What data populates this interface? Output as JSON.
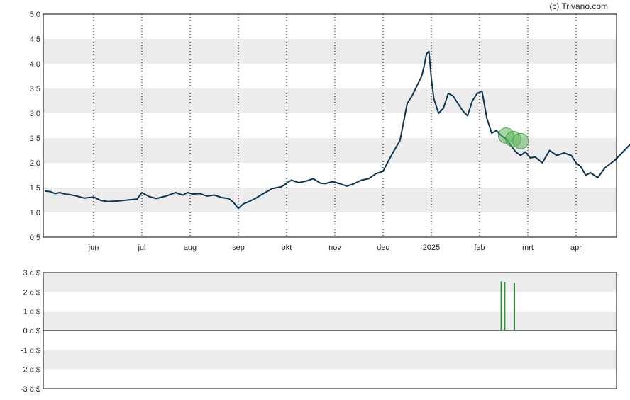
{
  "credit": "(c) Trivano.com",
  "colors": {
    "line": "#0d3552",
    "band": "#ececec",
    "grid": "#000000",
    "volume": "#2e8b3a",
    "marker_fill": "#5cb85c"
  },
  "chart_data": [
    {
      "type": "line",
      "title": "",
      "xlabel": "",
      "ylabel": "",
      "ylim": [
        0.5,
        5.0
      ],
      "y_ticks": [
        "0,5",
        "1,0",
        "1,5",
        "2,0",
        "2,5",
        "3,0",
        "3,5",
        "4,0",
        "4,5",
        "5,0"
      ],
      "x_ticks": [
        {
          "label": "jun",
          "x": 1.0
        },
        {
          "label": "jul",
          "x": 2.0
        },
        {
          "label": "aug",
          "x": 3.0
        },
        {
          "label": "sep",
          "x": 4.0
        },
        {
          "label": "okt",
          "x": 5.0
        },
        {
          "label": "nov",
          "x": 6.0
        },
        {
          "label": "dec",
          "x": 7.0
        },
        {
          "label": "2025",
          "x": 8.0
        },
        {
          "label": "feb",
          "x": 9.0
        },
        {
          "label": "mrt",
          "x": 10.0
        },
        {
          "label": "apr",
          "x": 11.0
        }
      ],
      "grid": true,
      "series": [
        {
          "x": [
            0.0,
            0.1,
            0.2,
            0.3,
            0.4,
            0.5,
            0.65,
            0.8,
            1.0,
            1.15,
            1.3,
            1.5,
            1.7,
            1.9,
            2.0,
            2.15,
            2.3,
            2.5,
            2.7,
            2.85,
            2.95,
            3.05,
            3.2,
            3.35,
            3.5,
            3.65,
            3.8,
            3.9,
            4.0,
            4.1,
            4.2,
            4.35,
            4.5,
            4.7,
            4.9,
            5.0,
            5.1,
            5.25,
            5.4,
            5.55,
            5.7,
            5.8,
            5.95,
            6.1,
            6.25,
            6.4,
            6.55,
            6.7,
            6.85,
            7.0,
            7.1,
            7.2,
            7.35,
            7.5,
            7.6,
            7.7,
            7.8,
            7.85,
            7.9,
            7.95,
            8.0,
            8.05,
            8.1,
            8.15,
            8.25,
            8.35,
            8.45,
            8.55,
            8.65,
            8.75,
            8.85,
            8.95,
            9.05,
            9.15,
            9.25,
            9.35,
            9.45,
            9.55,
            9.65,
            9.75,
            9.85,
            9.95,
            10.05,
            10.15,
            10.3,
            10.45,
            10.6,
            10.75,
            10.9,
            11.0,
            11.1,
            11.2,
            11.3,
            11.45,
            11.6,
            11.8,
            11.95,
            12.05,
            12.15,
            12.3
          ],
          "y": [
            1.43,
            1.42,
            1.38,
            1.4,
            1.37,
            1.36,
            1.33,
            1.29,
            1.31,
            1.24,
            1.22,
            1.23,
            1.25,
            1.27,
            1.4,
            1.32,
            1.28,
            1.33,
            1.4,
            1.35,
            1.4,
            1.37,
            1.38,
            1.33,
            1.35,
            1.3,
            1.28,
            1.2,
            1.08,
            1.17,
            1.21,
            1.28,
            1.37,
            1.48,
            1.52,
            1.59,
            1.65,
            1.6,
            1.63,
            1.68,
            1.59,
            1.58,
            1.62,
            1.58,
            1.53,
            1.58,
            1.65,
            1.68,
            1.78,
            1.83,
            2.02,
            2.2,
            2.45,
            3.2,
            3.35,
            3.55,
            3.75,
            3.95,
            4.2,
            4.25,
            3.7,
            3.3,
            3.15,
            3.0,
            3.1,
            3.4,
            3.35,
            3.2,
            3.05,
            2.95,
            3.25,
            3.4,
            3.45,
            2.9,
            2.6,
            2.65,
            2.55,
            2.48,
            2.35,
            2.22,
            2.15,
            2.22,
            2.1,
            2.12,
            2.0,
            2.25,
            2.15,
            2.2,
            2.15,
            2.0,
            1.92,
            1.75,
            1.8,
            1.7,
            1.9,
            2.05,
            2.2,
            2.3,
            2.4,
            2.35
          ]
        }
      ],
      "markers": [
        {
          "x": 9.55,
          "y": 2.55
        },
        {
          "x": 9.7,
          "y": 2.48
        },
        {
          "x": 9.85,
          "y": 2.44
        }
      ]
    },
    {
      "type": "bar",
      "title": "",
      "xlabel": "",
      "ylabel": "",
      "ylim": [
        -3,
        3
      ],
      "y_ticks": [
        "-3 d.$",
        "-2 d.$",
        "-1 d.$",
        "0 d.$",
        "1 d.$",
        "2 d.$",
        "3 d.$"
      ],
      "grid": true,
      "bars": [
        {
          "x": 9.45,
          "value": 2.55
        },
        {
          "x": 9.52,
          "value": 2.5
        },
        {
          "x": 9.72,
          "value": 2.45
        }
      ]
    }
  ]
}
